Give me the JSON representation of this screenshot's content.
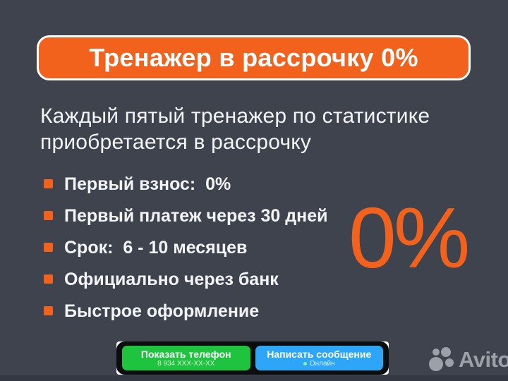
{
  "banner": {
    "title": "Тренажер в рассрочку 0%"
  },
  "headline": {
    "line1": "Каждый пятый тренажер по статистике",
    "line2": "приобретается в рассрочку"
  },
  "features": {
    "items": [
      {
        "label": "Первый взнос:  0%"
      },
      {
        "label": "Первый платеж через 30 дней"
      },
      {
        "label": "Срок:  6 - 10 месяцев"
      },
      {
        "label": "Официально через банк"
      },
      {
        "label": "Быстрое оформление"
      }
    ]
  },
  "highlight": {
    "value": "0%"
  },
  "contact_bar": {
    "phone_button": {
      "label": "Показать телефон",
      "phone": "8 934 XXX-XX-XX"
    },
    "message_button": {
      "label": "Написать сообщение",
      "status": "Онлайн"
    }
  },
  "watermark": {
    "brand": "Avito"
  },
  "colors": {
    "background": "#3e434e",
    "accent_orange": "#f2621d",
    "banner_border": "#ffffff",
    "text_light": "#f3f4f6",
    "button_green": "#1fc43e",
    "button_blue": "#2ea6f8",
    "bar_black": "#0c0d0f",
    "online_dot_green": "#8ef08e",
    "watermark_gray": "#9da0a9",
    "bottom_strip": "#343842"
  }
}
